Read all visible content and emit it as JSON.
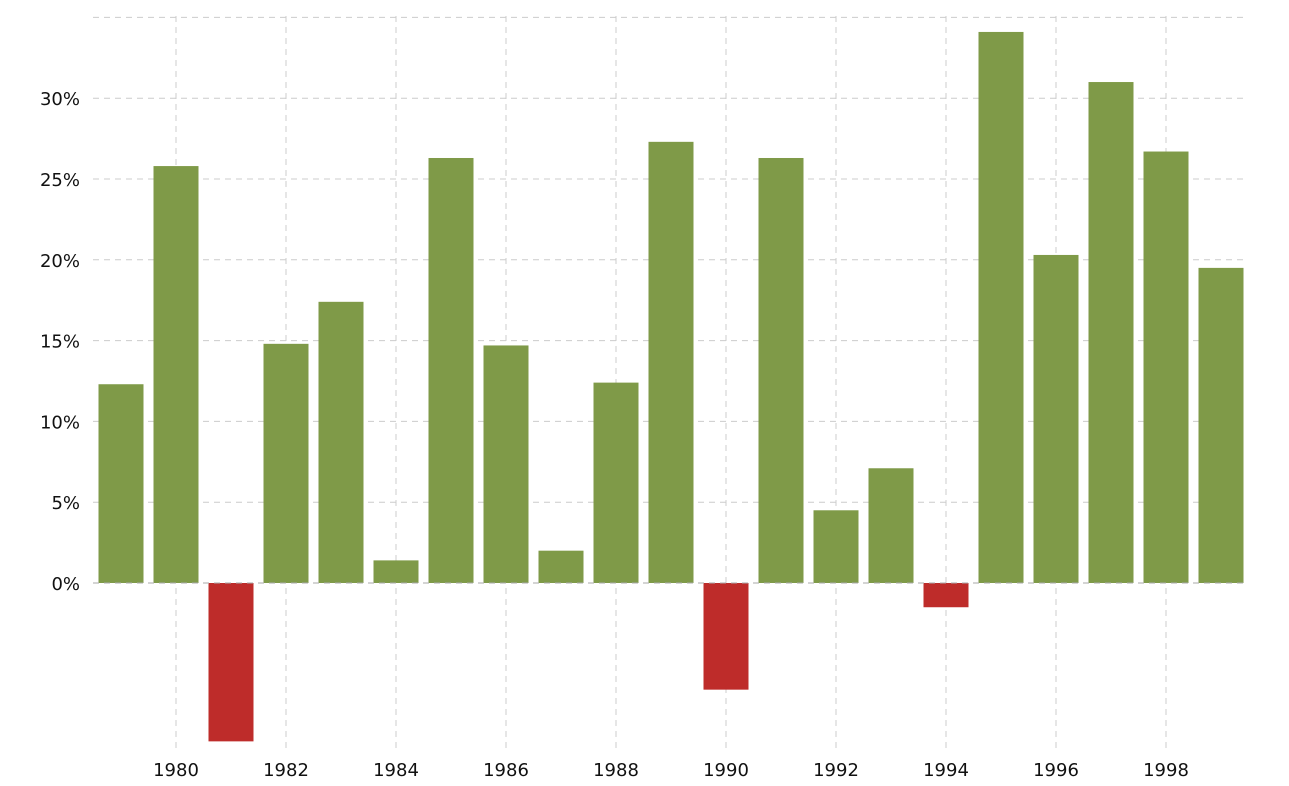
{
  "chart_data": {
    "type": "bar",
    "title": "",
    "xlabel": "",
    "ylabel": "",
    "categories": [
      "1979",
      "1980",
      "1981",
      "1982",
      "1983",
      "1984",
      "1985",
      "1986",
      "1987",
      "1988",
      "1989",
      "1990",
      "1991",
      "1992",
      "1993",
      "1994",
      "1995",
      "1996",
      "1997",
      "1998",
      "1999"
    ],
    "values": [
      12.3,
      25.8,
      -9.8,
      14.8,
      17.4,
      1.4,
      26.3,
      14.7,
      2.0,
      12.4,
      27.3,
      -6.6,
      26.3,
      4.5,
      7.1,
      -1.5,
      34.1,
      20.3,
      31.0,
      26.7,
      19.5
    ],
    "ylim": [
      -10,
      35
    ],
    "y_ticks": [
      0,
      5,
      10,
      15,
      20,
      25,
      30
    ],
    "y_tick_labels": [
      "0%",
      "5%",
      "10%",
      "15%",
      "20%",
      "25%",
      "30%"
    ],
    "x_tick_labels": [
      "1980",
      "1982",
      "1984",
      "1986",
      "1988",
      "1990",
      "1992",
      "1994",
      "1996",
      "1998"
    ],
    "grid": true,
    "legend": "none",
    "colors": {
      "positive": "#7f9a48",
      "negative": "#be2c2a",
      "grid": "#cccccc"
    }
  }
}
